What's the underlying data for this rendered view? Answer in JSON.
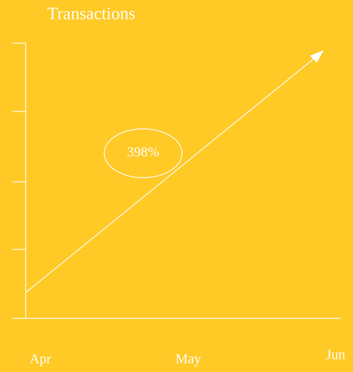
{
  "chart_data": {
    "type": "line",
    "title": "Transactions",
    "categories": [
      "Apr",
      "May",
      "Jun"
    ],
    "annotation": "398%"
  }
}
